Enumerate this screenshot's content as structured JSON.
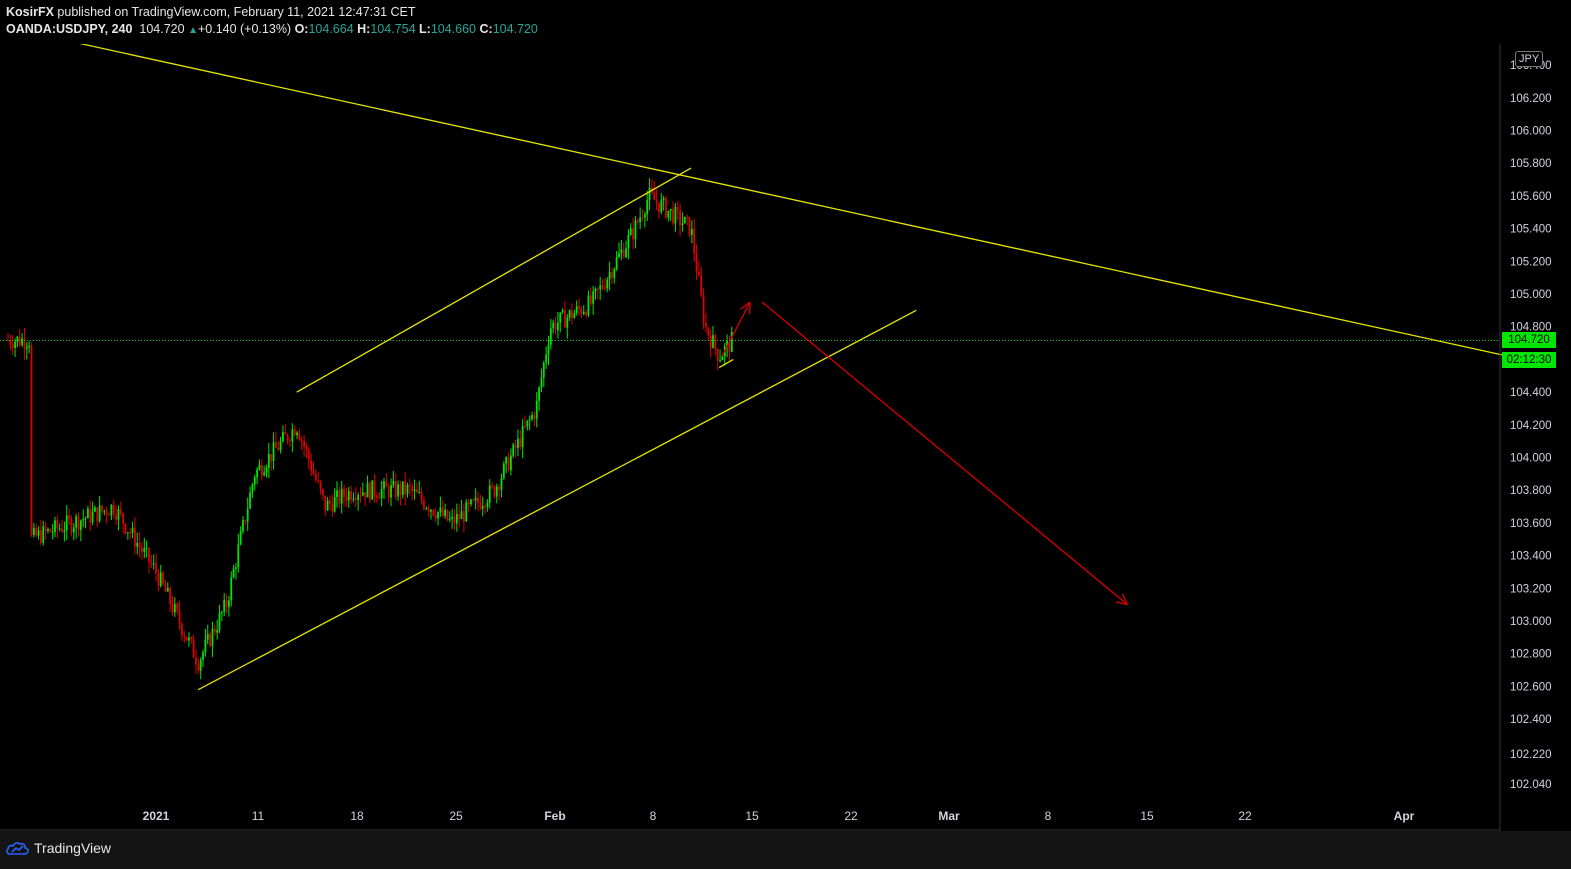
{
  "header": {
    "author": "KosirFX",
    "published": " published on TradingView.com, February 11, 2021 12:47:31 CET",
    "symbol": "OANDA:USDJPY, 240",
    "last": "104.720",
    "change": "+0.140 (+0.13%)",
    "o_label": "O:",
    "o_value": "104.664",
    "h_label": "H:",
    "h_value": "104.754",
    "l_label": "L:",
    "l_value": "104.660",
    "c_label": "C:",
    "c_value": "104.720"
  },
  "price_axis": {
    "currency": "JPY",
    "ticks": [
      "106.400",
      "106.200",
      "106.000",
      "105.800",
      "105.600",
      "105.400",
      "105.200",
      "105.000",
      "104.800",
      "104.400",
      "104.200",
      "104.000",
      "103.800",
      "103.600",
      "103.400",
      "103.200",
      "103.000",
      "102.800",
      "102.600",
      "102.400",
      "102.220",
      "102.040"
    ],
    "current_price": "104.720",
    "countdown": "02:12:30"
  },
  "time_axis": {
    "ticks": [
      "2021",
      "11",
      "18",
      "25",
      "Feb",
      "8",
      "15",
      "22",
      "Mar",
      "8",
      "15",
      "22",
      "Apr"
    ]
  },
  "footer": {
    "brand": "TradingView"
  },
  "colors": {
    "background": "#000000",
    "up_candle": "#00e600",
    "down_candle": "#e00000",
    "trendline": "#e6e600",
    "arrow": "#cc0000",
    "current_price_line": "#00e600"
  },
  "chart_data": {
    "type": "candlestick",
    "symbol": "OANDA:USDJPY",
    "interval": "240",
    "y_range": [
      101.98,
      106.52
    ],
    "current_price": 104.72,
    "price_path_anchors": [
      {
        "date": "2020-12-23",
        "price": 103.5
      },
      {
        "date": "2020-12-29",
        "price": 103.7
      },
      {
        "date": "2021-01-01",
        "price": 103.3
      },
      {
        "date": "2021-01-04",
        "price": 102.75
      },
      {
        "date": "2021-01-06",
        "price": 103.1
      },
      {
        "date": "2021-01-08",
        "price": 103.9
      },
      {
        "date": "2021-01-11",
        "price": 104.2
      },
      {
        "date": "2021-01-13",
        "price": 103.7
      },
      {
        "date": "2021-01-15",
        "price": 103.8
      },
      {
        "date": "2021-01-19",
        "price": 103.8
      },
      {
        "date": "2021-01-22",
        "price": 103.6
      },
      {
        "date": "2021-01-25",
        "price": 103.8
      },
      {
        "date": "2021-01-28",
        "price": 104.3
      },
      {
        "date": "2021-01-29",
        "price": 104.8
      },
      {
        "date": "2021-02-01",
        "price": 104.95
      },
      {
        "date": "2021-02-04",
        "price": 105.4
      },
      {
        "date": "2021-02-05",
        "price": 105.6
      },
      {
        "date": "2021-02-08",
        "price": 105.4
      },
      {
        "date": "2021-02-09",
        "price": 104.8
      },
      {
        "date": "2021-02-10",
        "price": 104.62
      },
      {
        "date": "2021-02-11",
        "price": 104.72
      }
    ],
    "trendlines": [
      {
        "from": {
          "date": "2020-12-23",
          "price": 106.6
        },
        "to": {
          "date": "2021-04-07",
          "price": 104.62
        }
      },
      {
        "from": {
          "date": "2021-01-04",
          "price": 102.58
        },
        "to": {
          "date": "2021-02-24",
          "price": 104.9
        }
      },
      {
        "from": {
          "date": "2021-01-11",
          "price": 104.4
        },
        "to": {
          "date": "2021-02-08",
          "price": 105.77
        }
      },
      {
        "from": {
          "date": "2021-02-10",
          "price": 104.55
        },
        "to": {
          "date": "2021-02-11",
          "price": 104.6
        }
      }
    ],
    "arrows": [
      {
        "from": {
          "date": "2021-02-11",
          "price": 104.62
        },
        "to": {
          "date": "2021-02-13",
          "price": 104.95
        }
      },
      {
        "from": {
          "date": "2021-02-13",
          "price": 104.95
        },
        "to": {
          "date": "2021-03-11",
          "price": 103.1
        }
      }
    ]
  }
}
